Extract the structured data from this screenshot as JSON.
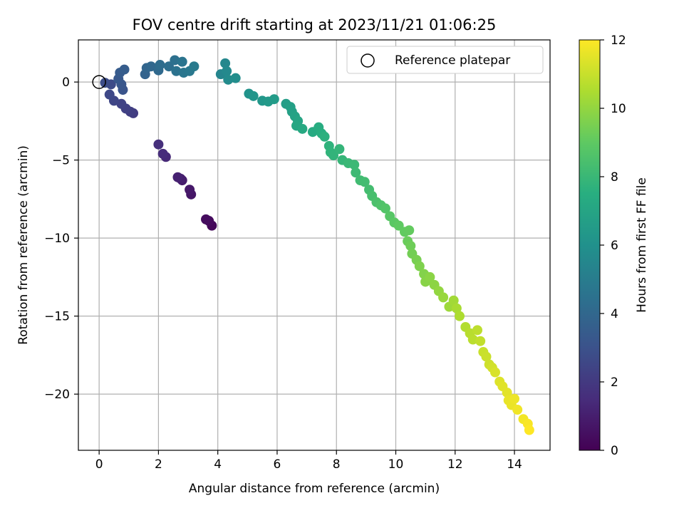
{
  "chart_data": {
    "type": "scatter",
    "title": "FOV centre drift starting at 2023/11/21 01:06:25",
    "xlabel": "Angular distance from reference (arcmin)",
    "ylabel": "Rotation from reference (arcmin)",
    "xlim": [
      -0.7,
      15.2
    ],
    "ylim": [
      -23.6,
      2.7
    ],
    "xticks": [
      0,
      2,
      4,
      6,
      8,
      10,
      12,
      14
    ],
    "yticks": [
      0,
      -5,
      -10,
      -15,
      -20
    ],
    "xtick_labels": [
      "0",
      "2",
      "4",
      "6",
      "8",
      "10",
      "12",
      "14"
    ],
    "ytick_labels": [
      "0",
      "−5",
      "−10",
      "−15",
      "−20"
    ],
    "grid": true,
    "legend": {
      "position": "upper right",
      "entries": [
        {
          "label": "Reference platepar",
          "marker": "open-circle"
        }
      ]
    },
    "reference_point": {
      "x": 0,
      "y": 0
    },
    "colorbar": {
      "label": "Hours from first FF file",
      "colormap": "viridis",
      "range": [
        0,
        12
      ],
      "ticks": [
        0,
        2,
        4,
        6,
        8,
        10,
        12
      ],
      "tick_labels": [
        "0",
        "2",
        "4",
        "6",
        "8",
        "10",
        "12"
      ]
    },
    "points": [
      {
        "x": 3.8,
        "y": -9.2,
        "c": 0.2
      },
      {
        "x": 3.7,
        "y": -8.9,
        "c": 0.3
      },
      {
        "x": 3.6,
        "y": -8.8,
        "c": 0.4
      },
      {
        "x": 3.1,
        "y": -7.2,
        "c": 0.7
      },
      {
        "x": 3.05,
        "y": -6.9,
        "c": 0.8
      },
      {
        "x": 2.8,
        "y": -6.3,
        "c": 0.9
      },
      {
        "x": 2.75,
        "y": -6.2,
        "c": 1.0
      },
      {
        "x": 2.65,
        "y": -6.1,
        "c": 1.1
      },
      {
        "x": 2.25,
        "y": -4.8,
        "c": 1.4
      },
      {
        "x": 2.15,
        "y": -4.6,
        "c": 1.5
      },
      {
        "x": 2.0,
        "y": -4.0,
        "c": 1.6
      },
      {
        "x": 1.15,
        "y": -2.0,
        "c": 2.1
      },
      {
        "x": 1.05,
        "y": -1.9,
        "c": 2.2
      },
      {
        "x": 0.9,
        "y": -1.7,
        "c": 2.3
      },
      {
        "x": 0.75,
        "y": -1.4,
        "c": 2.4
      },
      {
        "x": 0.5,
        "y": -1.2,
        "c": 2.5
      },
      {
        "x": 0.35,
        "y": -0.8,
        "c": 2.6
      },
      {
        "x": 0.4,
        "y": -0.15,
        "c": 2.7
      },
      {
        "x": 0.2,
        "y": -0.05,
        "c": 2.8
      },
      {
        "x": 0.8,
        "y": -0.5,
        "c": 3.1
      },
      {
        "x": 0.75,
        "y": -0.15,
        "c": 3.2
      },
      {
        "x": 0.65,
        "y": 0.2,
        "c": 3.3
      },
      {
        "x": 0.7,
        "y": 0.6,
        "c": 3.4
      },
      {
        "x": 0.85,
        "y": 0.8,
        "c": 3.5
      },
      {
        "x": 1.55,
        "y": 0.5,
        "c": 3.8
      },
      {
        "x": 1.6,
        "y": 0.9,
        "c": 3.9
      },
      {
        "x": 1.75,
        "y": 1.0,
        "c": 4.0
      },
      {
        "x": 2.0,
        "y": 0.75,
        "c": 4.1
      },
      {
        "x": 2.05,
        "y": 1.1,
        "c": 4.2
      },
      {
        "x": 2.35,
        "y": 1.0,
        "c": 4.3
      },
      {
        "x": 2.55,
        "y": 1.4,
        "c": 4.4
      },
      {
        "x": 2.6,
        "y": 0.7,
        "c": 4.5
      },
      {
        "x": 2.8,
        "y": 1.3,
        "c": 4.6
      },
      {
        "x": 2.85,
        "y": 0.6,
        "c": 4.7
      },
      {
        "x": 3.05,
        "y": 0.7,
        "c": 4.8
      },
      {
        "x": 3.2,
        "y": 1.0,
        "c": 4.9
      },
      {
        "x": 4.1,
        "y": 0.5,
        "c": 5.4
      },
      {
        "x": 4.25,
        "y": 1.2,
        "c": 5.5
      },
      {
        "x": 4.3,
        "y": 0.7,
        "c": 5.6
      },
      {
        "x": 4.35,
        "y": 0.15,
        "c": 5.7
      },
      {
        "x": 4.6,
        "y": 0.25,
        "c": 5.8
      },
      {
        "x": 5.05,
        "y": -0.75,
        "c": 6.1
      },
      {
        "x": 5.2,
        "y": -0.9,
        "c": 6.2
      },
      {
        "x": 5.5,
        "y": -1.2,
        "c": 6.3
      },
      {
        "x": 5.7,
        "y": -1.25,
        "c": 6.4
      },
      {
        "x": 5.9,
        "y": -1.1,
        "c": 6.5
      },
      {
        "x": 6.3,
        "y": -1.4,
        "c": 6.6
      },
      {
        "x": 6.45,
        "y": -1.6,
        "c": 6.7
      },
      {
        "x": 6.5,
        "y": -1.9,
        "c": 6.8
      },
      {
        "x": 6.6,
        "y": -2.2,
        "c": 6.9
      },
      {
        "x": 6.7,
        "y": -2.5,
        "c": 7.0
      },
      {
        "x": 6.65,
        "y": -2.8,
        "c": 7.1
      },
      {
        "x": 6.85,
        "y": -3.0,
        "c": 7.2
      },
      {
        "x": 7.2,
        "y": -3.2,
        "c": 7.3
      },
      {
        "x": 7.4,
        "y": -2.9,
        "c": 7.4
      },
      {
        "x": 7.5,
        "y": -3.3,
        "c": 7.5
      },
      {
        "x": 7.6,
        "y": -3.5,
        "c": 7.6
      },
      {
        "x": 7.75,
        "y": -4.1,
        "c": 7.7
      },
      {
        "x": 7.8,
        "y": -4.5,
        "c": 7.75
      },
      {
        "x": 7.9,
        "y": -4.7,
        "c": 7.8
      },
      {
        "x": 8.1,
        "y": -4.3,
        "c": 7.85
      },
      {
        "x": 8.2,
        "y": -5.0,
        "c": 7.9
      },
      {
        "x": 8.4,
        "y": -5.2,
        "c": 8.0
      },
      {
        "x": 8.6,
        "y": -5.3,
        "c": 8.05
      },
      {
        "x": 8.65,
        "y": -5.8,
        "c": 8.1
      },
      {
        "x": 8.8,
        "y": -6.3,
        "c": 8.2
      },
      {
        "x": 8.95,
        "y": -6.4,
        "c": 8.25
      },
      {
        "x": 9.1,
        "y": -6.9,
        "c": 8.3
      },
      {
        "x": 9.2,
        "y": -7.3,
        "c": 8.4
      },
      {
        "x": 9.35,
        "y": -7.7,
        "c": 8.5
      },
      {
        "x": 9.5,
        "y": -7.9,
        "c": 8.6
      },
      {
        "x": 9.65,
        "y": -8.1,
        "c": 8.7
      },
      {
        "x": 9.8,
        "y": -8.6,
        "c": 8.8
      },
      {
        "x": 9.95,
        "y": -9.0,
        "c": 8.9
      },
      {
        "x": 10.1,
        "y": -9.2,
        "c": 9.0
      },
      {
        "x": 10.3,
        "y": -9.6,
        "c": 9.05
      },
      {
        "x": 10.45,
        "y": -9.5,
        "c": 9.1
      },
      {
        "x": 10.4,
        "y": -10.2,
        "c": 9.2
      },
      {
        "x": 10.5,
        "y": -10.5,
        "c": 9.3
      },
      {
        "x": 10.55,
        "y": -11.0,
        "c": 9.4
      },
      {
        "x": 10.7,
        "y": -11.4,
        "c": 9.5
      },
      {
        "x": 10.8,
        "y": -11.8,
        "c": 9.6
      },
      {
        "x": 10.95,
        "y": -12.3,
        "c": 9.7
      },
      {
        "x": 11.0,
        "y": -12.8,
        "c": 9.8
      },
      {
        "x": 11.15,
        "y": -12.5,
        "c": 9.85
      },
      {
        "x": 11.3,
        "y": -13.0,
        "c": 9.9
      },
      {
        "x": 11.45,
        "y": -13.4,
        "c": 10.0
      },
      {
        "x": 11.6,
        "y": -13.8,
        "c": 10.1
      },
      {
        "x": 11.8,
        "y": -14.4,
        "c": 10.2
      },
      {
        "x": 11.95,
        "y": -14.0,
        "c": 10.3
      },
      {
        "x": 12.05,
        "y": -14.5,
        "c": 10.4
      },
      {
        "x": 12.15,
        "y": -15.0,
        "c": 10.5
      },
      {
        "x": 12.35,
        "y": -15.7,
        "c": 10.6
      },
      {
        "x": 12.5,
        "y": -16.1,
        "c": 10.7
      },
      {
        "x": 12.6,
        "y": -16.5,
        "c": 10.75
      },
      {
        "x": 12.75,
        "y": -15.9,
        "c": 10.8
      },
      {
        "x": 12.85,
        "y": -16.6,
        "c": 10.9
      },
      {
        "x": 12.95,
        "y": -17.3,
        "c": 11.0
      },
      {
        "x": 13.05,
        "y": -17.6,
        "c": 11.05
      },
      {
        "x": 13.15,
        "y": -18.1,
        "c": 11.1
      },
      {
        "x": 13.25,
        "y": -18.3,
        "c": 11.2
      },
      {
        "x": 13.35,
        "y": -18.6,
        "c": 11.3
      },
      {
        "x": 13.5,
        "y": -19.2,
        "c": 11.4
      },
      {
        "x": 13.6,
        "y": -19.5,
        "c": 11.45
      },
      {
        "x": 13.75,
        "y": -19.9,
        "c": 11.5
      },
      {
        "x": 13.8,
        "y": -20.4,
        "c": 11.6
      },
      {
        "x": 13.9,
        "y": -20.7,
        "c": 11.65
      },
      {
        "x": 14.0,
        "y": -20.3,
        "c": 11.7
      },
      {
        "x": 14.1,
        "y": -21.0,
        "c": 11.75
      },
      {
        "x": 14.3,
        "y": -21.6,
        "c": 11.8
      },
      {
        "x": 14.45,
        "y": -21.9,
        "c": 11.9
      },
      {
        "x": 14.5,
        "y": -22.3,
        "c": 12.0
      }
    ]
  }
}
